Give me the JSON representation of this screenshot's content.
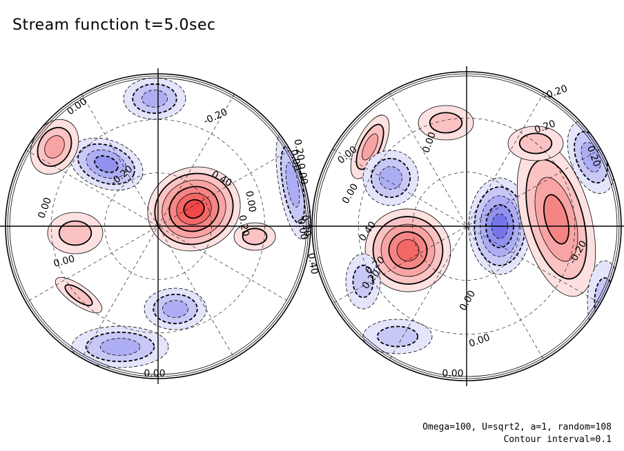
{
  "chart_data": {
    "type": "heatmap",
    "title": "Stream function t=5.0sec",
    "projection": "orthographic, two hemispheres",
    "colormap": {
      "negative": "#5b5be6",
      "zero": "#ffffff",
      "positive": "#f04848"
    },
    "contour_interval": 0.1,
    "range_estimate": [
      -0.5,
      0.6
    ],
    "panels": [
      {
        "name": "left-hemisphere",
        "features": [
          {
            "sign": "positive",
            "peak": 0.6
          },
          {
            "sign": "negative",
            "peak": -0.4
          },
          {
            "sign": "positive",
            "peak": 0.3
          },
          {
            "sign": "negative",
            "peak": -0.3
          },
          {
            "sign": "positive",
            "peak": 0.2
          },
          {
            "sign": "negative",
            "peak": -0.3
          },
          {
            "sign": "negative",
            "peak": -0.3
          },
          {
            "sign": "positive",
            "peak": 0.2
          },
          {
            "sign": "negative",
            "peak": -0.3
          },
          {
            "sign": "positive",
            "peak": 0.2
          }
        ],
        "contour_labels": [
          "0.00",
          "-0.20",
          "-0.20",
          "0.40",
          "0.00",
          "0.20",
          "0.00",
          "0.00",
          "0.20",
          "0.00",
          "0.00",
          "0.00",
          "0.20",
          "0.40",
          "0.00"
        ]
      },
      {
        "name": "right-hemisphere",
        "features": [
          {
            "sign": "positive",
            "peak": 0.5
          },
          {
            "sign": "negative",
            "peak": -0.5
          },
          {
            "sign": "positive",
            "peak": 0.4
          },
          {
            "sign": "positive",
            "peak": 0.3
          },
          {
            "sign": "negative",
            "peak": -0.3
          },
          {
            "sign": "positive",
            "peak": 0.2
          },
          {
            "sign": "negative",
            "peak": -0.3
          },
          {
            "sign": "negative",
            "peak": -0.2
          },
          {
            "sign": "negative",
            "peak": -0.2
          },
          {
            "sign": "positive",
            "peak": 0.2
          },
          {
            "sign": "negative",
            "peak": -0.2
          }
        ],
        "contour_labels": [
          "-0.20",
          "0.20",
          "0.00",
          "0.00",
          "0.00",
          "0.20",
          "0.40",
          "0.20",
          "0.20",
          "0.00",
          "-0.20",
          "0.00",
          "0.00"
        ]
      }
    ],
    "notes": [
      "Omega=100, U=sqrt2, a=1, random=108",
      "Contour interval=0.1"
    ]
  }
}
